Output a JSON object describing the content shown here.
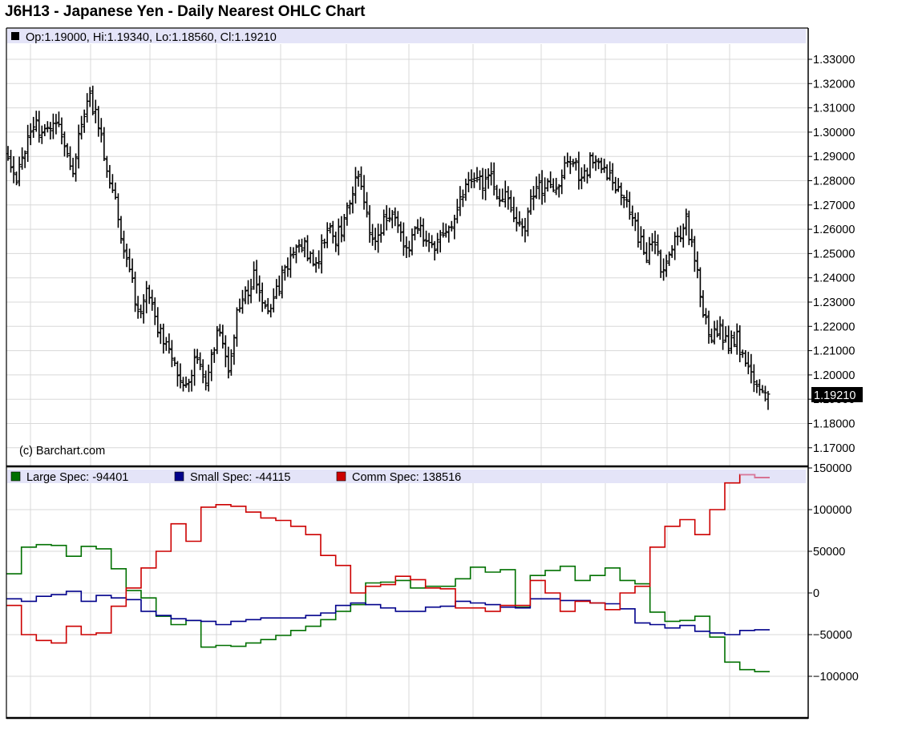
{
  "title": "J6H13 - Japanese Yen - Daily Nearest OHLC Chart",
  "credit": "(c) Barchart.com",
  "colors": {
    "background": "#ffffff",
    "grid": "#d8d8d8",
    "header_band": "#e4e4f8",
    "price_bars": "#000000",
    "large_spec": "#007000",
    "small_spec": "#00008b",
    "comm_spec": "#cc0000",
    "comm_spec_projection": "#d8789c"
  },
  "chart_data": [
    {
      "type": "ohlc",
      "title": "J6H13 - Japanese Yen - Daily Nearest OHLC Chart",
      "legend": {
        "text": "Op:1.19000, Hi:1.19340, Lo:1.18560, Cl:1.19210",
        "open": 1.19,
        "high": 1.1934,
        "low": 1.1856,
        "close": 1.1921
      },
      "last_value_label": "1.19210",
      "y_ticks": [
        "1.17000",
        "1.18000",
        "1.19000",
        "1.20000",
        "1.21000",
        "1.22000",
        "1.23000",
        "1.24000",
        "1.25000",
        "1.26000",
        "1.27000",
        "1.28000",
        "1.29000",
        "1.30000",
        "1.31000",
        "1.32000",
        "1.33000"
      ],
      "ylim": [
        1.163,
        1.338
      ],
      "grid": true,
      "anchors": [
        1.287,
        1.281,
        1.29,
        1.305,
        1.298,
        1.302,
        1.306,
        1.291,
        1.282,
        1.306,
        1.314,
        1.306,
        1.287,
        1.273,
        1.255,
        1.24,
        1.226,
        1.236,
        1.222,
        1.214,
        1.205,
        1.198,
        1.192,
        1.21,
        1.195,
        1.211,
        1.219,
        1.202,
        1.226,
        1.233,
        1.241,
        1.228,
        1.224,
        1.236,
        1.244,
        1.25,
        1.254,
        1.249,
        1.246,
        1.262,
        1.256,
        1.262,
        1.275,
        1.284,
        1.262,
        1.256,
        1.262,
        1.268,
        1.258,
        1.25,
        1.262,
        1.256,
        1.251,
        1.257,
        1.262,
        1.27,
        1.277,
        1.282,
        1.279,
        1.28,
        1.275,
        1.272,
        1.262,
        1.258,
        1.272,
        1.276,
        1.278,
        1.275,
        1.283,
        1.291,
        1.278,
        1.286,
        1.29,
        1.284,
        1.279,
        1.276,
        1.268,
        1.258,
        1.249,
        1.254,
        1.243,
        1.252,
        1.258,
        1.263,
        1.248,
        1.228,
        1.214,
        1.218,
        1.213,
        1.216,
        1.208,
        1.2,
        1.192,
        1.1921
      ],
      "series": [
        {
          "name": "Op",
          "values": [
            1.19
          ]
        },
        {
          "name": "Hi",
          "values": [
            1.1934
          ]
        },
        {
          "name": "Lo",
          "values": [
            1.1856
          ]
        },
        {
          "name": "Cl",
          "values": [
            1.1921
          ]
        }
      ]
    },
    {
      "type": "line",
      "y_ticks": [
        "-100000",
        "-50000",
        "0",
        "50000",
        "100000",
        "150000"
      ],
      "ylim": [
        -150000,
        150000
      ],
      "grid": true,
      "legend_text": {
        "large": "Large Spec: -94401",
        "small": "Small Spec: -44115",
        "comm": "Comm Spec: 138516"
      },
      "series": [
        {
          "name": "Large Spec",
          "values": [
            23000,
            55000,
            58000,
            57000,
            44000,
            56000,
            53000,
            29000,
            3000,
            -6000,
            -28000,
            -38000,
            -33000,
            -65000,
            -63000,
            -64000,
            -60000,
            -56000,
            -51000,
            -45000,
            -40000,
            -32000,
            -22000,
            -14000,
            12000,
            13000,
            15000,
            6000,
            8000,
            8000,
            17000,
            31000,
            25000,
            28000,
            -17000,
            21000,
            27000,
            32000,
            15000,
            21000,
            30000,
            15000,
            11000,
            -23000,
            -34000,
            -33000,
            -28000,
            -53000,
            -83000,
            -92000,
            -94401
          ]
        },
        {
          "name": "Small Spec",
          "values": [
            -7000,
            -10000,
            -4000,
            -2000,
            2000,
            -10000,
            -3000,
            -6000,
            -8000,
            -22000,
            -27000,
            -31000,
            -33000,
            -34000,
            -38000,
            -34000,
            -32000,
            -30000,
            -30000,
            -30000,
            -27000,
            -24000,
            -15000,
            -12000,
            -14000,
            -18000,
            -22000,
            -22000,
            -17000,
            -16000,
            -10000,
            -12000,
            -14000,
            -17000,
            -18000,
            -7000,
            -7000,
            -9000,
            -9000,
            -12000,
            -13000,
            -19000,
            -36000,
            -38000,
            -42000,
            -39000,
            -46000,
            -48000,
            -50000,
            -45000,
            -44115
          ]
        },
        {
          "name": "Comm Spec",
          "values": [
            -15000,
            -50000,
            -57000,
            -60000,
            -40000,
            -50000,
            -48000,
            -16000,
            6000,
            30000,
            50000,
            83000,
            62000,
            103000,
            106000,
            104000,
            97000,
            90000,
            87000,
            80000,
            70000,
            45000,
            33000,
            0,
            8000,
            10000,
            20000,
            16000,
            6000,
            5000,
            -18000,
            -18000,
            -22000,
            -15000,
            -15000,
            15000,
            0,
            -22000,
            -10000,
            -12000,
            -20000,
            0,
            8000,
            55000,
            80000,
            88000,
            70000,
            100000,
            132000,
            142000,
            138516
          ]
        }
      ]
    }
  ]
}
